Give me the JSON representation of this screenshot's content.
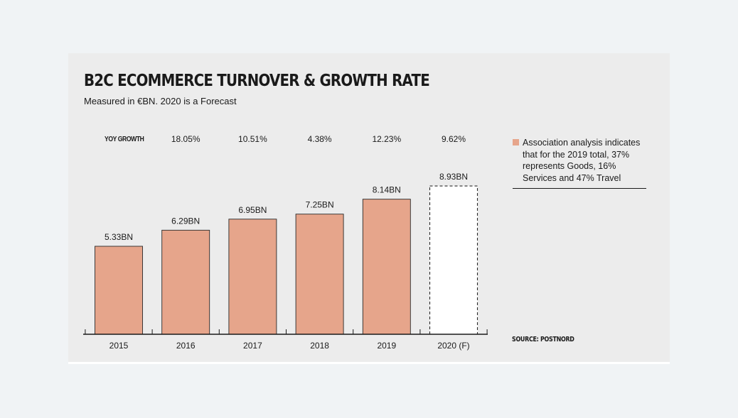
{
  "chart_data": {
    "type": "bar",
    "title": "B2C ECOMMERCE TURNOVER & GROWTH RATE",
    "subtitle": "Measured in €BN. 2020 is a Forecast",
    "categories": [
      "2015",
      "2016",
      "2017",
      "2018",
      "2019",
      "2020 (F)"
    ],
    "values": [
      5.33,
      6.29,
      6.95,
      7.25,
      8.14,
      8.93
    ],
    "value_labels": [
      "5.33BN",
      "6.29BN",
      "6.95BN",
      "7.25BN",
      "8.14BN",
      "8.93BN"
    ],
    "forecast": [
      false,
      false,
      false,
      false,
      false,
      true
    ],
    "growth_header": "YOY GROWTH",
    "growth_labels": [
      "",
      "18.05%",
      "10.51%",
      "4.38%",
      "12.23%",
      "9.62%"
    ],
    "legend": {
      "text": "Association analysis indicates that for the 2019 total, 37% represents Goods, 16% Services and 47% Travel",
      "color": "#e6a58b",
      "placement": "right"
    },
    "source": "SOURCE: POSTNORD",
    "ylim": [
      0,
      9
    ],
    "grid": false,
    "colors": {
      "bar_fill": "#e6a58b",
      "bar_stroke": "#2a2a2a",
      "forecast_fill": "#ffffff",
      "text": "#1a1a1a",
      "panel_background": "#ececec",
      "page_background": "#f0f3f5"
    }
  }
}
